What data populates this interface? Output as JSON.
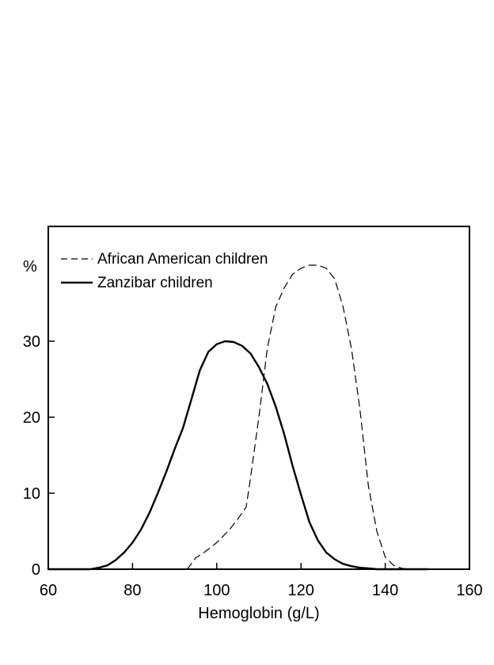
{
  "chart_data": {
    "type": "line",
    "xlabel": "Hemoglobin (g/L)",
    "ylabel": "%",
    "xlim": [
      60,
      160
    ],
    "ylim": [
      0,
      40
    ],
    "x_ticks": [
      60,
      80,
      100,
      120,
      140,
      160
    ],
    "y_ticks": [
      0,
      10,
      20,
      30
    ],
    "grid": false,
    "legend_position": "top-left",
    "series": [
      {
        "name": "African American children",
        "line_style": "dashed",
        "color": "#000000",
        "x": [
          93,
          95,
          97,
          100,
          103,
          105,
          107,
          108,
          110,
          112,
          114,
          116,
          118,
          120,
          122,
          124,
          126,
          128,
          130,
          132,
          134,
          136,
          138,
          140,
          142,
          144,
          146,
          148,
          150
        ],
        "y": [
          0,
          1.5,
          2.2,
          3.5,
          5.2,
          6.6,
          8.2,
          12,
          20,
          29,
          34.5,
          37,
          38.8,
          39.6,
          40,
          40,
          39.6,
          38.2,
          34.5,
          29,
          21,
          11,
          5,
          1.6,
          0.5,
          0.1,
          0,
          0,
          0
        ]
      },
      {
        "name": "Zanzibar children",
        "line_style": "solid",
        "color": "#000000",
        "x": [
          60,
          66,
          70,
          72,
          74,
          76,
          78,
          80,
          82,
          84,
          86,
          88,
          90,
          92,
          94,
          96,
          98,
          100,
          102,
          104,
          106,
          108,
          110,
          112,
          114,
          116,
          118,
          120,
          122,
          124,
          126,
          128,
          130,
          132,
          134,
          136,
          138,
          140,
          142,
          144,
          146,
          148,
          150
        ],
        "y": [
          0,
          0,
          0,
          0.2,
          0.5,
          1.2,
          2.2,
          3.5,
          5.2,
          7.4,
          10,
          12.8,
          15.8,
          18.6,
          22.4,
          26.2,
          28.6,
          29.6,
          30,
          29.9,
          29.4,
          28.4,
          26.6,
          24.4,
          21.4,
          17.8,
          13.6,
          9.8,
          6.2,
          3.8,
          2.2,
          1.3,
          0.7,
          0.4,
          0.2,
          0.1,
          0,
          0,
          0,
          0,
          0,
          0,
          0
        ]
      }
    ]
  }
}
